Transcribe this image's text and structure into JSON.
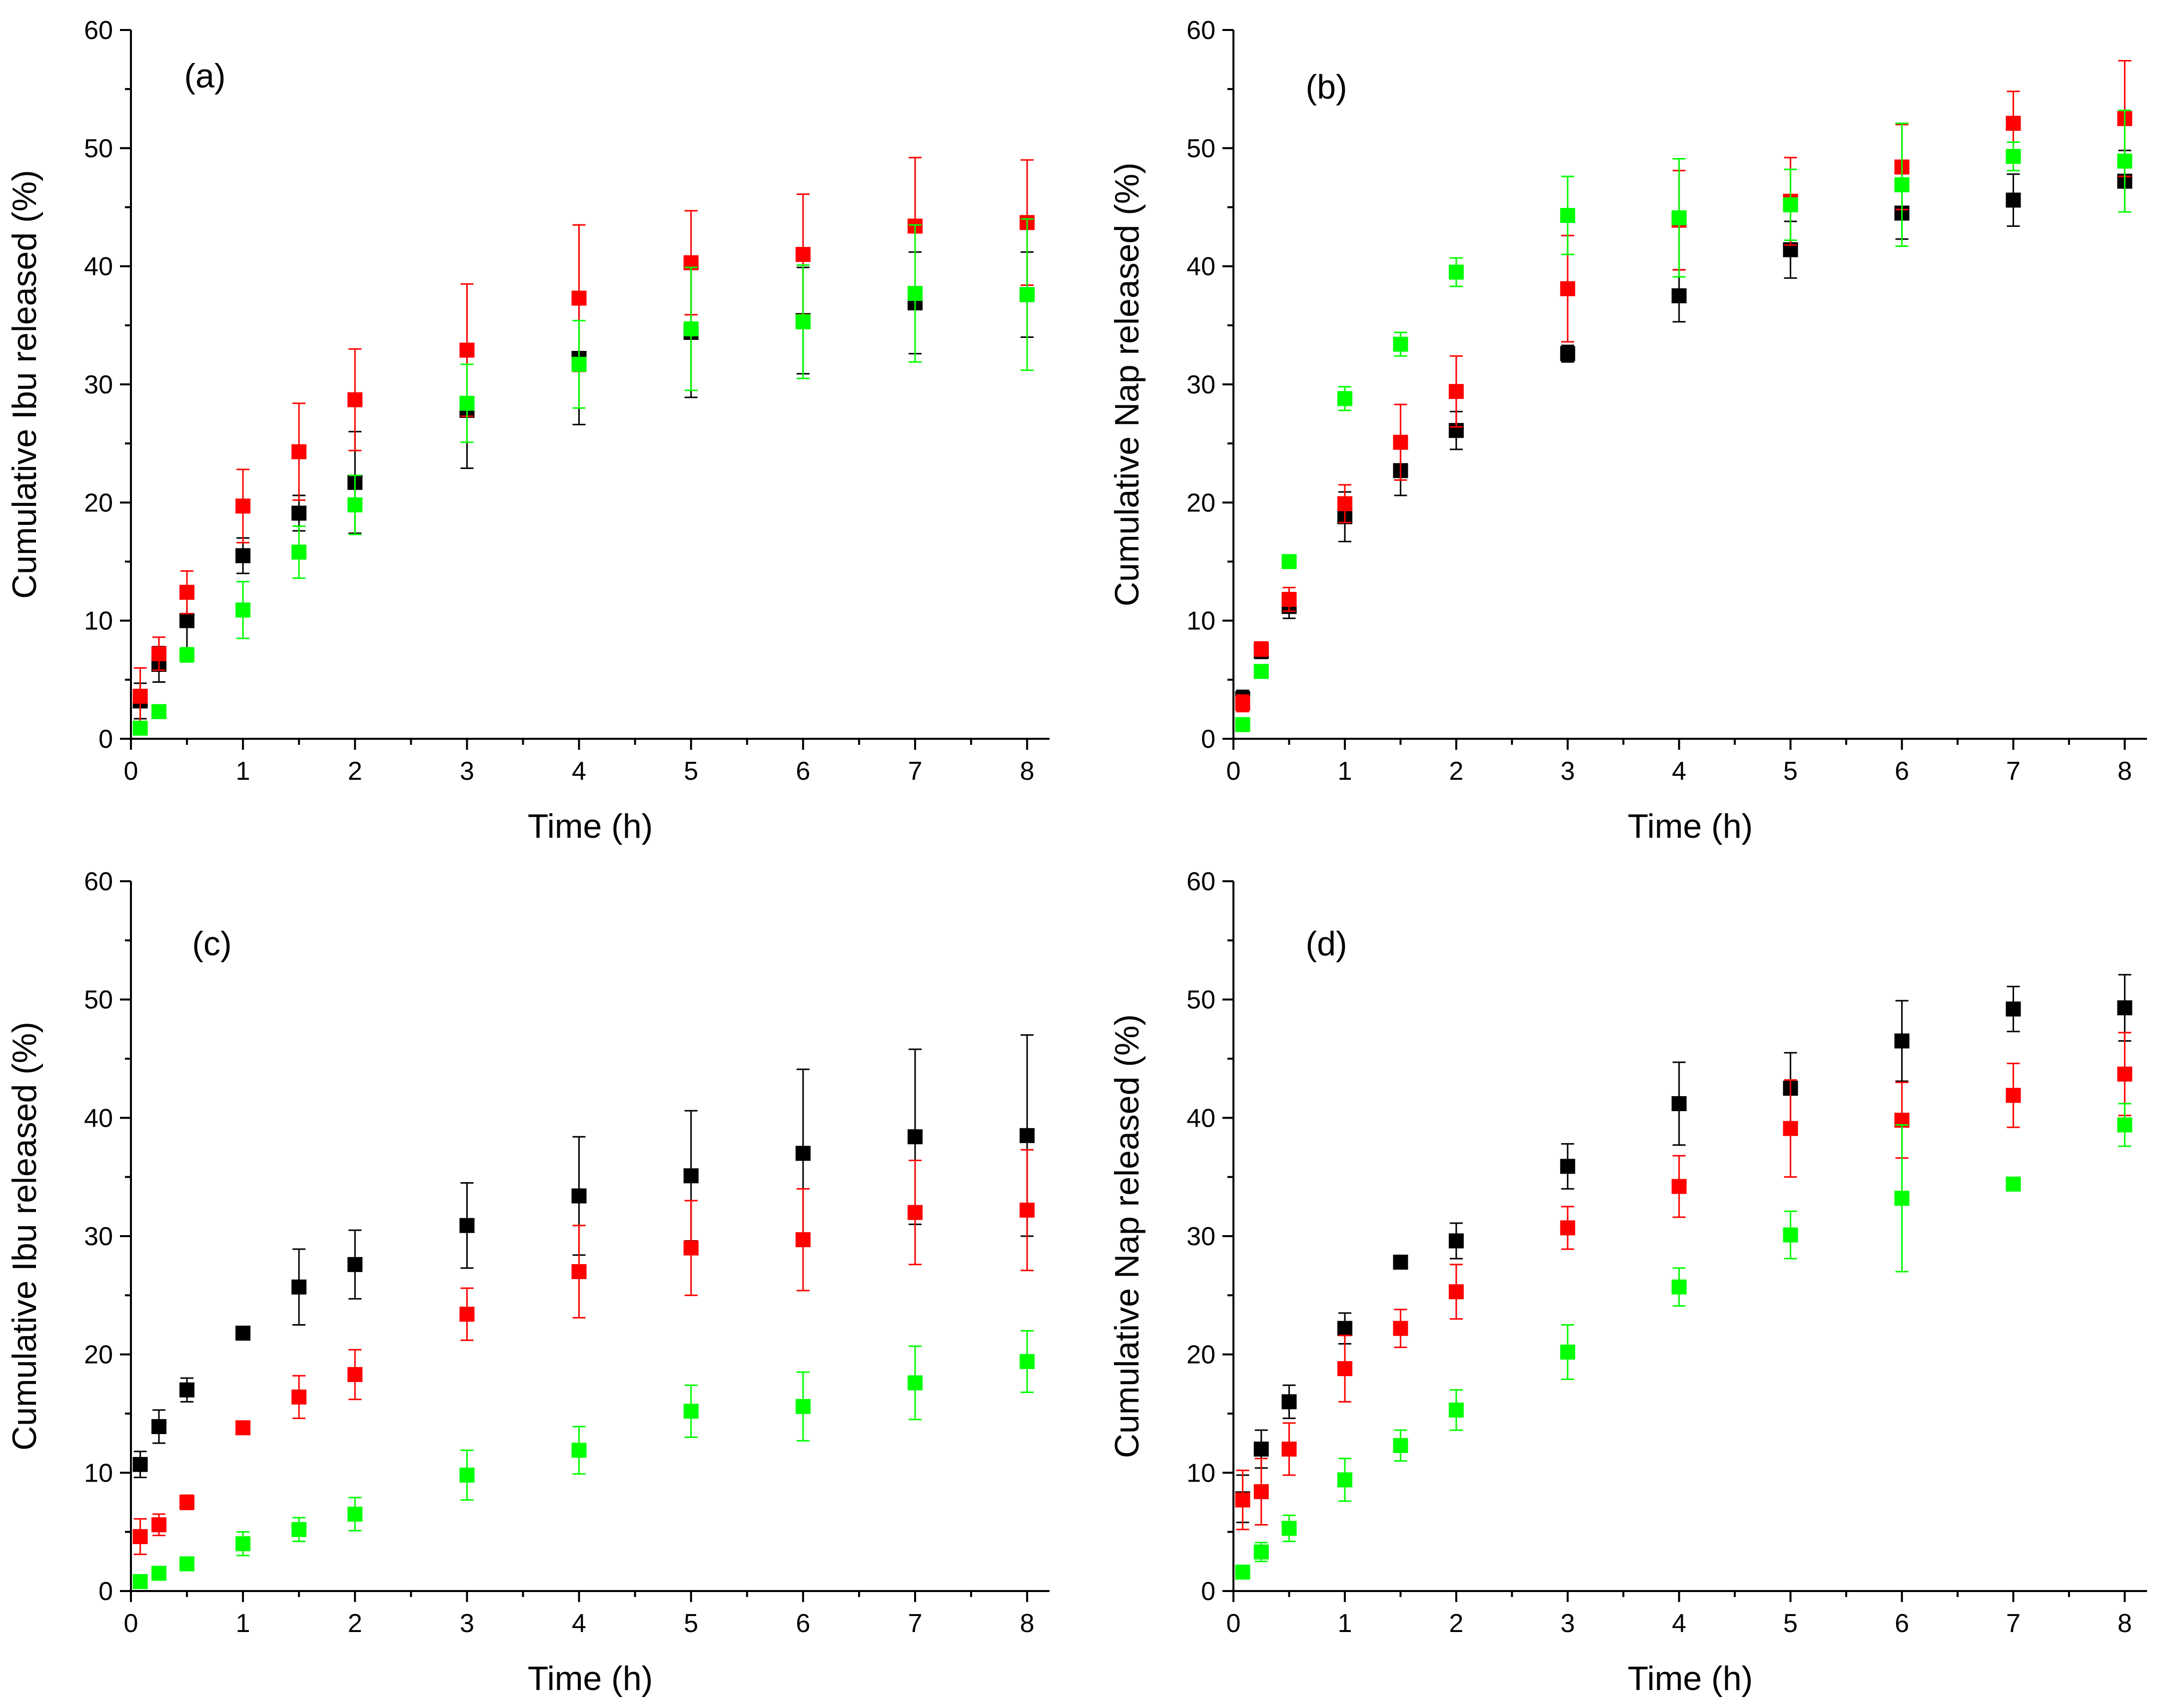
{
  "chart_data": [
    {
      "type": "scatter",
      "panel": "(a)",
      "xlabel": "Time (h)",
      "ylabel": "Cumulative Ibu released (%)",
      "xlim": [
        0,
        8.2
      ],
      "ylim": [
        0,
        60
      ],
      "xticks": [
        0,
        1,
        2,
        3,
        4,
        5,
        6,
        7,
        8
      ],
      "yticks": [
        0,
        10,
        20,
        30,
        40,
        50,
        60
      ],
      "x": [
        0.083,
        0.25,
        0.5,
        1,
        1.5,
        2,
        3,
        4,
        5,
        6,
        7,
        8
      ],
      "series": [
        {
          "color": "#000000",
          "values": [
            3.2,
            6.3,
            10.0,
            15.5,
            19.1,
            21.7,
            27.8,
            32.2,
            34.4,
            35.4,
            36.9,
            37.6
          ],
          "errors": [
            1.5,
            1.5,
            2.5,
            1.5,
            1.5,
            4.3,
            4.9,
            5.6,
            5.5,
            4.5,
            4.3,
            3.6
          ]
        },
        {
          "color": "#ff0000",
          "values": [
            3.6,
            7.2,
            12.4,
            19.7,
            24.3,
            28.7,
            32.9,
            37.3,
            40.3,
            41.0,
            43.4,
            43.7
          ],
          "errors": [
            2.4,
            1.4,
            1.8,
            3.1,
            4.1,
            4.3,
            5.6,
            6.2,
            4.4,
            5.1,
            5.8,
            5.3
          ]
        },
        {
          "color": "#00ff00",
          "values": [
            0.9,
            2.3,
            7.1,
            10.9,
            15.8,
            19.8,
            28.4,
            31.7,
            34.7,
            35.3,
            37.7,
            37.6
          ],
          "errors": [
            0.3,
            0.3,
            0.6,
            2.4,
            2.2,
            2.5,
            3.3,
            3.7,
            5.2,
            4.8,
            5.8,
            6.4
          ]
        }
      ]
    },
    {
      "type": "scatter",
      "panel": "(b)",
      "xlabel": "Time (h)",
      "ylabel": "Cumulative Nap released (%)",
      "xlim": [
        0,
        8.2
      ],
      "ylim": [
        0,
        60
      ],
      "xticks": [
        0,
        1,
        2,
        3,
        4,
        5,
        6,
        7,
        8
      ],
      "yticks": [
        0,
        10,
        20,
        30,
        40,
        50,
        60
      ],
      "x": [
        0.083,
        0.25,
        0.5,
        1,
        1.5,
        2,
        3,
        4,
        5,
        6,
        7,
        8
      ],
      "series": [
        {
          "color": "#000000",
          "values": [
            3.4,
            7.4,
            11.2,
            18.8,
            22.7,
            26.1,
            32.6,
            37.5,
            41.4,
            44.5,
            45.6,
            47.2
          ],
          "errors": [
            0.7,
            0.6,
            1.0,
            2.1,
            2.1,
            1.6,
            0.7,
            2.2,
            2.4,
            2.2,
            2.2,
            2.6
          ]
        },
        {
          "color": "#ff0000",
          "values": [
            3.0,
            7.6,
            11.8,
            19.9,
            25.1,
            29.4,
            38.1,
            43.9,
            45.5,
            48.4,
            52.1,
            52.5
          ],
          "errors": [
            0.7,
            0.6,
            1.0,
            1.6,
            3.2,
            3.0,
            4.5,
            4.2,
            3.7,
            3.6,
            2.7,
            4.9
          ]
        },
        {
          "color": "#00ff00",
          "values": [
            1.2,
            5.7,
            15.0,
            28.8,
            33.4,
            39.5,
            44.3,
            44.1,
            45.2,
            46.9,
            49.3,
            48.9
          ],
          "errors": [
            0.3,
            0.3,
            0.3,
            1.0,
            1.0,
            1.2,
            3.3,
            5.0,
            3.0,
            5.2,
            1.2,
            4.3
          ]
        }
      ]
    },
    {
      "type": "scatter",
      "panel": "(c)",
      "xlabel": "Time (h)",
      "ylabel": "Cumulative Ibu released (%)",
      "xlim": [
        0,
        8.2
      ],
      "ylim": [
        0,
        60
      ],
      "xticks": [
        0,
        1,
        2,
        3,
        4,
        5,
        6,
        7,
        8
      ],
      "yticks": [
        0,
        10,
        20,
        30,
        40,
        50,
        60
      ],
      "x": [
        0.083,
        0.25,
        0.5,
        1,
        1.5,
        2,
        3,
        4,
        5,
        6,
        7,
        8
      ],
      "series": [
        {
          "color": "#000000",
          "values": [
            10.7,
            13.9,
            17.0,
            21.8,
            25.7,
            27.6,
            30.9,
            33.4,
            35.1,
            37.0,
            38.4,
            38.5
          ],
          "errors": [
            1.1,
            1.4,
            1.0,
            0.3,
            3.2,
            2.9,
            3.6,
            5.0,
            5.5,
            7.1,
            7.4,
            8.5
          ]
        },
        {
          "color": "#ff0000",
          "values": [
            4.6,
            5.6,
            7.5,
            13.8,
            16.4,
            18.3,
            23.4,
            27.0,
            29.0,
            29.7,
            32.0,
            32.2
          ],
          "errors": [
            1.5,
            0.9,
            0.6,
            0.3,
            1.8,
            2.1,
            2.2,
            3.9,
            4.0,
            4.3,
            4.4,
            5.1
          ]
        },
        {
          "color": "#00ff00",
          "values": [
            0.8,
            1.5,
            2.3,
            4.0,
            5.2,
            6.5,
            9.8,
            11.9,
            15.2,
            15.6,
            17.6,
            19.4
          ],
          "errors": [
            0.3,
            0.3,
            0.3,
            1.0,
            1.0,
            1.4,
            2.1,
            2.0,
            2.2,
            2.9,
            3.1,
            2.6
          ]
        }
      ]
    },
    {
      "type": "scatter",
      "panel": "(d)",
      "xlabel": "Time (h)",
      "ylabel": "Cumulative Nap released (%)",
      "xlim": [
        0,
        8.2
      ],
      "ylim": [
        0,
        60
      ],
      "xticks": [
        0,
        1,
        2,
        3,
        4,
        5,
        6,
        7,
        8
      ],
      "yticks": [
        0,
        10,
        20,
        30,
        40,
        50,
        60
      ],
      "x": [
        0.083,
        0.25,
        0.5,
        1,
        1.5,
        2,
        3,
        4,
        5,
        6,
        7,
        8
      ],
      "series": [
        {
          "color": "#000000",
          "values": [
            7.8,
            12.0,
            16.0,
            22.2,
            27.8,
            29.6,
            35.9,
            41.2,
            42.5,
            46.5,
            49.2,
            49.3
          ],
          "errors": [
            2.0,
            1.6,
            1.4,
            1.3,
            0.3,
            1.5,
            1.9,
            3.5,
            3.0,
            3.4,
            1.9,
            2.8
          ]
        },
        {
          "color": "#ff0000",
          "values": [
            7.7,
            8.4,
            12.0,
            18.8,
            22.2,
            25.3,
            30.7,
            34.2,
            39.1,
            39.8,
            41.9,
            43.7
          ],
          "errors": [
            2.5,
            2.8,
            2.2,
            2.8,
            1.6,
            2.3,
            1.8,
            2.6,
            4.1,
            3.2,
            2.7,
            3.5
          ]
        },
        {
          "color": "#00ff00",
          "values": [
            1.6,
            3.3,
            5.3,
            9.4,
            12.3,
            15.3,
            20.2,
            25.7,
            30.1,
            33.2,
            34.4,
            39.4
          ],
          "errors": [
            0.3,
            0.8,
            1.1,
            1.8,
            1.3,
            1.7,
            2.3,
            1.6,
            2.0,
            6.2,
            0.3,
            1.8
          ]
        }
      ]
    }
  ]
}
